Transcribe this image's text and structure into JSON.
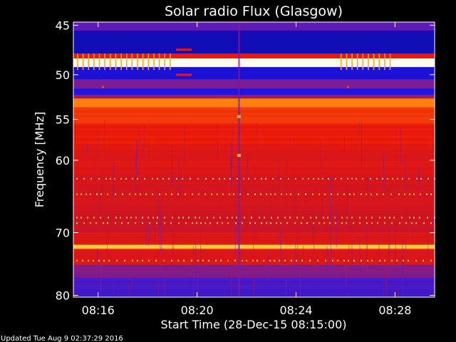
{
  "chart_data": {
    "type": "heatmap",
    "title": "Solar radio Flux (Glasgow)",
    "xlabel": "Start Time (28-Dec-15 08:15:00)",
    "ylabel": "Frequency [MHz]",
    "x_ticks": [
      "08:16",
      "08:20",
      "08:24",
      "08:28"
    ],
    "y_ticks": [
      "45",
      "50",
      "55",
      "60",
      "70",
      "80"
    ],
    "x_tick_minutes": [
      1,
      5,
      9,
      13
    ],
    "y_tick_values": [
      45,
      50,
      55,
      60,
      70,
      80
    ],
    "xlim_minutes": [
      0,
      14.6
    ],
    "ylim_mhz": [
      44.7,
      80.3
    ],
    "y_scale": "log",
    "colormap": "blue-red-yellow-white",
    "bands": [
      {
        "from": 44.7,
        "to": 45.5,
        "level": 0.25
      },
      {
        "from": 45.5,
        "to": 47.8,
        "level": 0.05
      },
      {
        "from": 47.8,
        "to": 48.3,
        "level": 0.55
      },
      {
        "from": 48.3,
        "to": 49.2,
        "level": 1.0
      },
      {
        "from": 49.2,
        "to": 50.5,
        "level": 0.1
      },
      {
        "from": 50.5,
        "to": 51.5,
        "level": 0.3
      },
      {
        "from": 51.5,
        "to": 52.2,
        "level": 0.12
      },
      {
        "from": 52.2,
        "to": 52.6,
        "level": 0.35
      },
      {
        "from": 52.6,
        "to": 53.6,
        "level": 0.75
      },
      {
        "from": 53.6,
        "to": 55.5,
        "level": 0.62
      },
      {
        "from": 55.5,
        "to": 58.0,
        "level": 0.55
      },
      {
        "from": 58.0,
        "to": 62.0,
        "level": 0.5
      },
      {
        "from": 62.0,
        "to": 66.0,
        "level": 0.47
      },
      {
        "from": 66.0,
        "to": 70.0,
        "level": 0.45
      },
      {
        "from": 70.0,
        "to": 71.8,
        "level": 0.5
      },
      {
        "from": 71.8,
        "to": 72.4,
        "level": 0.85
      },
      {
        "from": 72.4,
        "to": 75.0,
        "level": 0.5
      },
      {
        "from": 75.0,
        "to": 77.0,
        "level": 0.32
      },
      {
        "from": 77.0,
        "to": 80.3,
        "level": 0.2
      }
    ],
    "spike_freqs": [
      62.4,
      64.5,
      67.8,
      68.6,
      74.3
    ],
    "grid": false,
    "footer": "Updated Tue Aug  9 02:37:29 2016",
    "colors": {
      "background": "#000000",
      "frame": "#ffffff",
      "text": "#ffffff"
    }
  }
}
